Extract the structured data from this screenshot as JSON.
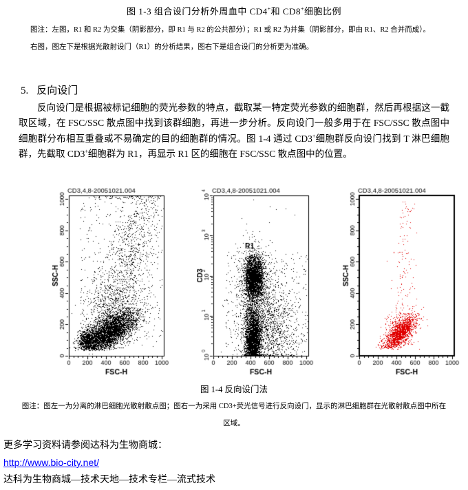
{
  "page": {
    "figure13_title_runs": [
      {
        "t": "图 1-3  组合设门分析外周血中 CD4"
      },
      {
        "t": "+",
        "sup": true
      },
      {
        "t": "和 CD8"
      },
      {
        "t": "+",
        "sup": true
      },
      {
        "t": "细胞比例"
      }
    ],
    "note13": {
      "line1": "图注：左图，R1 和 R2 为交集（阴影部分，即 R1 与 R2 的公共部分）；R1 或 R2 为并集（阴影部分，即由 R1、R2 合并而成）。",
      "line2": "右图，图左下是根据光散射设门（R1）的分析结果，图右下是组合设门的分析更为准确。"
    },
    "section": {
      "number": "5.",
      "title": "反向设门"
    },
    "paragraph_runs": [
      {
        "t": "反向设门是根据被标记细胞的荧光参数的特点，截取某一特定荧光参数的细胞群，然后再根据这一截取区域，在 FSC/SSC 散点图中找到该群细胞，再进一步分析。反向设门一般多用于在 FSC/SSC 散点图中细胞群分布相互重叠或不易确定的目的细胞群的情况。图 1-4 通过 CD3"
      },
      {
        "t": "+",
        "sup": true
      },
      {
        "t": "细胞群反向设门找到 T 淋巴细胞群，先截取 CD3"
      },
      {
        "t": "+",
        "sup": true
      },
      {
        "t": "细胞群为 R1，再显示 R1 区的细胞在 FSC/SSC 散点图中的位置。"
      }
    ],
    "figure14_caption": "图 1-4 反向设门法",
    "note14": "图注：图左一为分离的淋巴细胞光散射散点图；图右一为采用 CD3+荧光信号进行反向设门，显示的淋巴细胞群在光散射散点图中所在区域。",
    "footer": {
      "line1": "更多学习资料请参阅达科为生物商城：",
      "link": "http://www.bio-city.net/",
      "link_color": "#0000ff",
      "line2": "达科为生物商城—技术天地—技术专栏—流式技术"
    }
  },
  "chart_data": [
    {
      "type": "scatter",
      "title": "CD3,4,8-20051021.004",
      "xlabel": "FSC-H",
      "ylabel": "SSC-H",
      "x_range": [
        0,
        1023
      ],
      "y_range": [
        0,
        1023
      ],
      "x_ticks": [
        0,
        200,
        400,
        600,
        800,
        1000
      ],
      "y_ticks": [
        0,
        200,
        400,
        600,
        800,
        1000
      ],
      "y_scale": "linear",
      "point_color": "#000000",
      "seed": 11,
      "clusters": [
        {
          "type": "gauss_rot",
          "count": 4200,
          "cx": 430,
          "cy": 150,
          "s1": 150,
          "s2": 48,
          "angle": 18,
          "ymin": 35
        },
        {
          "type": "gauss",
          "count": 700,
          "cx": 195,
          "cy": 95,
          "sx": 45,
          "sy": 38,
          "ymin": 40
        },
        {
          "type": "gauss",
          "count": 500,
          "cx": 470,
          "cy": 330,
          "sx": 150,
          "sy": 90
        },
        {
          "type": "gauss_rot",
          "count": 800,
          "cx": 640,
          "cy": 620,
          "s1": 260,
          "s2": 120,
          "angle": 60
        },
        {
          "type": "uniform",
          "count": 380,
          "x": [
            120,
            1010
          ],
          "y": [
            60,
            1010
          ]
        },
        {
          "type": "uniform",
          "count": 70,
          "x": [
            260,
            995
          ],
          "y": [
            1002,
            1022
          ]
        }
      ],
      "gate": null
    },
    {
      "type": "scatter",
      "title": "CD3,4,8-20051021.004",
      "xlabel": "FSC-H",
      "ylabel": "CD3",
      "x_range": [
        0,
        1023
      ],
      "y_scale": "log",
      "y_exp_range": [
        0,
        4
      ],
      "x_ticks": [
        0,
        200,
        400,
        600,
        800,
        1000
      ],
      "y_ticks_exp": [
        0,
        1,
        2,
        3,
        4
      ],
      "point_color": "#000000",
      "seed": 7,
      "clusters": [
        {
          "type": "gauss",
          "count": 2400,
          "cx": 435,
          "cy": 1.95,
          "sx": 48,
          "sy": 0.26
        },
        {
          "type": "gauss",
          "count": 700,
          "cx": 450,
          "cy": 1.85,
          "sx": 95,
          "sy": 0.5
        },
        {
          "type": "gauss",
          "count": 3200,
          "cx": 425,
          "cy": 0.35,
          "sx": 42,
          "sy": 0.42,
          "yclamp": true
        },
        {
          "type": "gauss",
          "count": 1300,
          "cx": 560,
          "cy": 0.75,
          "sx": 160,
          "sy": 0.5,
          "yclamp": true
        },
        {
          "type": "uniform",
          "count": 420,
          "x": [
            130,
            1010
          ],
          "y": [
            0.02,
            2.6
          ]
        },
        {
          "type": "uniform",
          "count": 4,
          "x": [
            300,
            950
          ],
          "y": [
            3.5,
            3.95
          ]
        }
      ],
      "gate": {
        "label": "R1",
        "label_pos": [
          390,
          2.68
        ],
        "points": [
          [
            358,
            1.95
          ],
          [
            362,
            2.18
          ],
          [
            378,
            2.35
          ],
          [
            405,
            2.44
          ],
          [
            445,
            2.47
          ],
          [
            483,
            2.43
          ],
          [
            508,
            2.3
          ],
          [
            522,
            2.1
          ],
          [
            524,
            1.88
          ],
          [
            512,
            1.68
          ],
          [
            490,
            1.53
          ],
          [
            455,
            1.45
          ],
          [
            415,
            1.44
          ],
          [
            385,
            1.5
          ],
          [
            366,
            1.64
          ],
          [
            358,
            1.8
          ]
        ]
      }
    },
    {
      "type": "scatter",
      "title": "CD3,4,8-20051021.004",
      "xlabel": "FSC-H",
      "ylabel": "SSC-H",
      "x_range": [
        0,
        1023
      ],
      "y_range": [
        0,
        1023
      ],
      "x_ticks": [
        0,
        200,
        400,
        600,
        800,
        1000
      ],
      "y_ticks": [
        0,
        200,
        400,
        600,
        800,
        1000
      ],
      "y_scale": "linear",
      "point_color": "#e00000",
      "frame_width": 2,
      "seed": 23,
      "clusters": [
        {
          "type": "gauss_rot",
          "count": 1500,
          "cx": 420,
          "cy": 135,
          "s1": 100,
          "s2": 36,
          "angle": 30,
          "ymin": 45
        },
        {
          "type": "gauss",
          "count": 260,
          "cx": 450,
          "cy": 185,
          "sx": 85,
          "sy": 55,
          "ymin": 45
        },
        {
          "type": "gauss_unify",
          "count": 95,
          "cx": 495,
          "sx": 60,
          "y": [
            240,
            990
          ]
        },
        {
          "type": "uniform",
          "count": 25,
          "x": [
            320,
            620
          ],
          "y": [
            250,
            720
          ]
        }
      ],
      "gate": null
    }
  ]
}
